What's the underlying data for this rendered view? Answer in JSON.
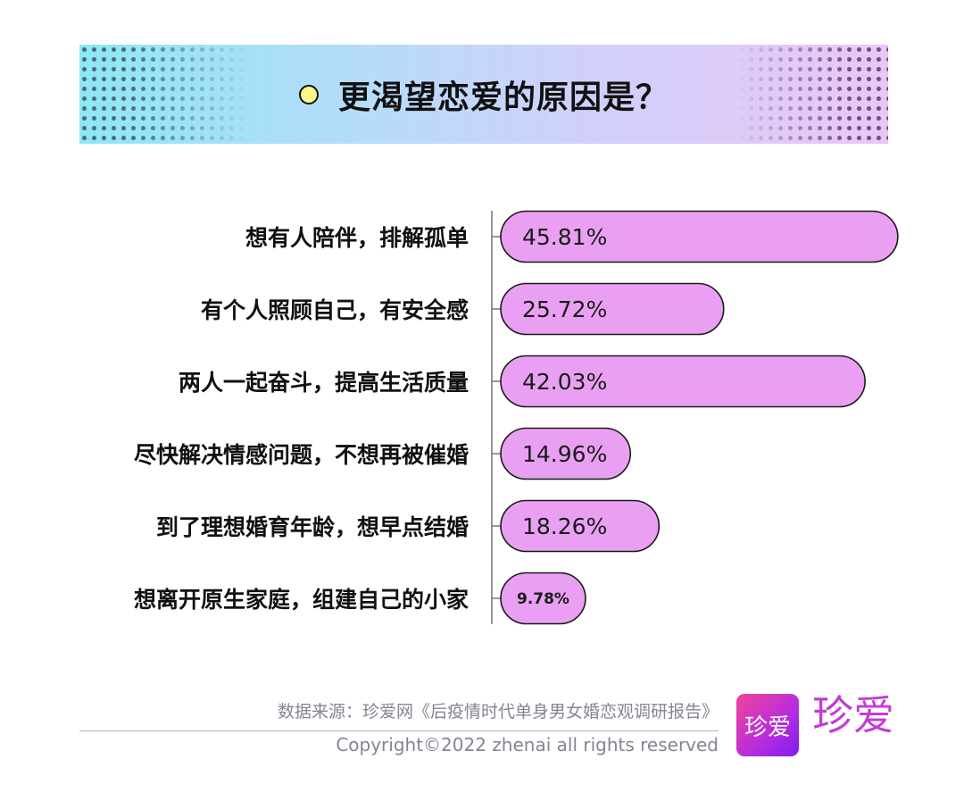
{
  "header": {
    "title": "更渴望恋爱的原因是？"
  },
  "chart_data": {
    "type": "bar",
    "orientation": "horizontal",
    "title": "更渴望恋爱的原因是？",
    "categories": [
      "想有人陪伴，排解孤单",
      "有个人照顾自己，有安全感",
      "两人一起奋斗，提高生活质量",
      "尽快解决情感问题，不想再被催婚",
      "到了理想婚育年龄，想早点结婚",
      "想离开原生家庭，组建自己的小家"
    ],
    "values": [
      45.81,
      25.72,
      42.03,
      14.96,
      18.26,
      9.78
    ],
    "labels": [
      "45.81%",
      "25.72%",
      "42.03%",
      "14.96%",
      "18.26%",
      "9.78%"
    ],
    "unit": "%",
    "bar_color": "#eaa0f2",
    "grid": false
  },
  "footer": {
    "source": "数据来源：珍爱网《后疫情时代单身男女婚恋观调研报告》",
    "copyright": "Copyright©2022  zhenai  all rights reserved",
    "logo_text": "珍爱"
  }
}
